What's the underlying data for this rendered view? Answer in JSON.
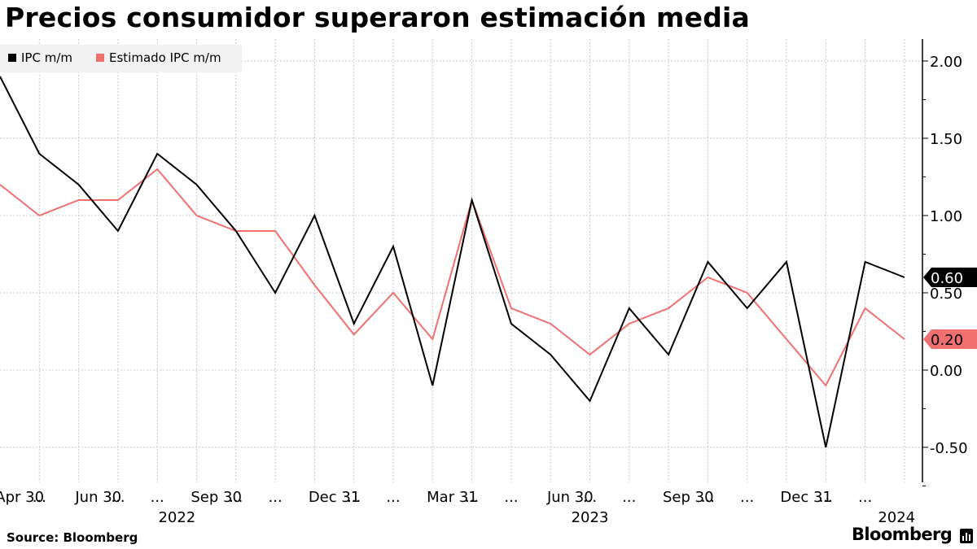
{
  "header": {
    "title": "Precios consumidor superaron estimación media"
  },
  "footer": {
    "source": "Source: Bloomberg",
    "brand": "Bloomberg"
  },
  "colors": {
    "ipc": "#000000",
    "estimate": "#f07070",
    "grid": "#c8c8c8",
    "legend_bg": "#f2f2f2"
  },
  "chart_data": {
    "type": "line",
    "title": "Precios consumidor superaron estimación media",
    "xlabel": "",
    "ylabel": "",
    "ylim": [
      -0.75,
      2.2
    ],
    "y_ticks": [
      "2.00",
      "1.50",
      "1.00",
      "0.50",
      "0.00",
      "-0.50"
    ],
    "y_tick_values": [
      2.0,
      1.5,
      1.0,
      0.5,
      0.0,
      -0.5
    ],
    "x_tick_labels": [
      "Apr 30",
      "...",
      "Jun 30",
      "...",
      "...",
      "Sep 30",
      "...",
      "...",
      "Dec 31",
      "...",
      "...",
      "Mar 31",
      "...",
      "...",
      "Jun 30",
      "...",
      "...",
      "Sep 30",
      "...",
      "...",
      "Dec 31",
      "...",
      "..."
    ],
    "x_tick_slots": [
      0.5,
      1,
      2.5,
      3,
      4,
      5.5,
      6,
      7,
      8.5,
      9,
      10,
      11.5,
      12,
      13,
      14.5,
      15,
      16,
      17.5,
      18,
      19,
      20.5,
      21,
      22
    ],
    "year_labels": [
      {
        "label": "2022",
        "slot": 4.5
      },
      {
        "label": "2023",
        "slot": 15
      },
      {
        "label": "2024",
        "slot": 22.8
      }
    ],
    "legend": "top-left",
    "series": [
      {
        "name": "IPC m/m",
        "values": [
          1.9,
          1.4,
          1.2,
          0.9,
          1.4,
          1.2,
          0.9,
          0.5,
          1.0,
          0.3,
          0.8,
          -0.1,
          1.1,
          0.3,
          0.1,
          -0.2,
          0.4,
          0.1,
          0.7,
          0.4,
          0.7,
          -0.5,
          0.7,
          0.6
        ],
        "last_value_label": "0.60"
      },
      {
        "name": "Estimado IPC m/m",
        "values": [
          1.2,
          1.0,
          1.1,
          1.1,
          1.3,
          1.0,
          0.9,
          0.9,
          0.55,
          0.23,
          0.5,
          0.2,
          1.1,
          0.4,
          0.3,
          0.1,
          0.3,
          0.4,
          0.6,
          0.5,
          0.2,
          -0.1,
          0.4,
          0.2
        ],
        "last_value_label": "0.20"
      }
    ]
  }
}
